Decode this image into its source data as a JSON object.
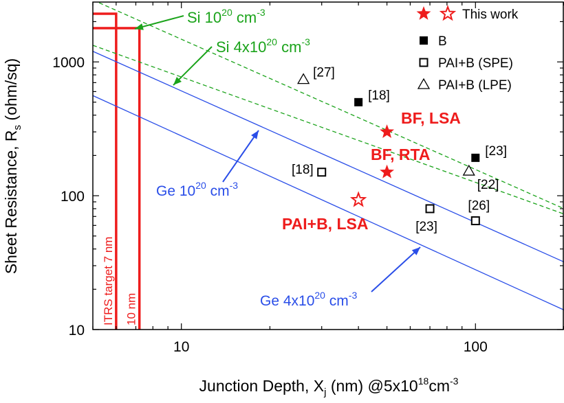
{
  "chart_data": {
    "type": "scatter",
    "xscale": "log",
    "yscale": "log",
    "xlim": [
      5,
      200
    ],
    "ylim": [
      10,
      2800
    ],
    "xticks": [
      {
        "v": 10,
        "label": "10"
      },
      {
        "v": 100,
        "label": "100"
      }
    ],
    "yticks": [
      {
        "v": 10,
        "label": "10"
      },
      {
        "v": 100,
        "label": "100"
      },
      {
        "v": 1000,
        "label": "1000"
      }
    ],
    "xlabel": {
      "main": "Junction Depth, X",
      "sub": "j",
      "rest": " (nm) @5x10",
      "sup": "18",
      "tail": "cm",
      "sup2": "-3"
    },
    "ylabel": {
      "main": "Sheet Resistance, R",
      "sub": "s",
      "tail": " (ohm/sq)"
    },
    "legend": [
      {
        "marker": "stars",
        "label": "This work"
      },
      {
        "marker": "square-filled",
        "label": "B"
      },
      {
        "marker": "square-open",
        "label": "PAI+B (SPE)"
      },
      {
        "marker": "triangle-open",
        "label": "PAI+B (LPE)"
      }
    ],
    "colors": {
      "red": "#ee1c1c",
      "green": "#1aa31a",
      "blue": "#2a4ee8",
      "black": "#000000"
    },
    "lines": [
      {
        "name": "Si 10^20 cm^-3",
        "color": "#1aa31a",
        "dash": true,
        "points": [
          [
            5,
            2900
          ],
          [
            200,
            80
          ]
        ]
      },
      {
        "name": "Si 4x10^20 cm^-3",
        "color": "#1aa31a",
        "dash": true,
        "points": [
          [
            5,
            1330
          ],
          [
            200,
            73
          ]
        ]
      },
      {
        "name": "Ge 10^20 cm^-3",
        "color": "#2a4ee8",
        "dash": false,
        "points": [
          [
            5,
            1200
          ],
          [
            200,
            32
          ]
        ]
      },
      {
        "name": "Ge 4x10^20 cm^-3",
        "color": "#2a4ee8",
        "dash": false,
        "points": [
          [
            5,
            560
          ],
          [
            200,
            14
          ]
        ]
      }
    ],
    "points": [
      {
        "series": "This work",
        "marker": "star-filled",
        "x": 50,
        "y": 300
      },
      {
        "series": "This work",
        "marker": "star-filled",
        "x": 50,
        "y": 150
      },
      {
        "series": "This work",
        "marker": "star-open",
        "x": 40,
        "y": 93
      },
      {
        "series": "B",
        "marker": "square-filled",
        "x": 40,
        "y": 500
      },
      {
        "series": "B",
        "marker": "square-filled",
        "x": 100,
        "y": 192
      },
      {
        "series": "PAI+B (SPE)",
        "marker": "square-open",
        "x": 30,
        "y": 150
      },
      {
        "series": "PAI+B (SPE)",
        "marker": "square-open",
        "x": 70,
        "y": 80
      },
      {
        "series": "PAI+B (SPE)",
        "marker": "square-open",
        "x": 100,
        "y": 65
      },
      {
        "series": "PAI+B (LPE)",
        "marker": "triangle-open",
        "x": 26,
        "y": 740
      },
      {
        "series": "PAI+B (LPE)",
        "marker": "triangle-open",
        "x": 95,
        "y": 153
      }
    ],
    "refs": [
      {
        "text": "[27]",
        "x": 26,
        "y": 740,
        "anchor": "right"
      },
      {
        "text": "[18]",
        "x": 40,
        "y": 500,
        "anchor": "right"
      },
      {
        "text": "[18]",
        "x": 30,
        "y": 150,
        "anchor": "left"
      },
      {
        "text": "[23]",
        "x": 100,
        "y": 192,
        "anchor": "right"
      },
      {
        "text": "[22]",
        "x": 95,
        "y": 153,
        "anchor": "below-right"
      },
      {
        "text": "[26]",
        "x": 100,
        "y": 65,
        "anchor": "above"
      },
      {
        "text": "[23]",
        "x": 70,
        "y": 80,
        "anchor": "below"
      }
    ],
    "annotations": {
      "bf_lsa": "BF, LSA",
      "bf_rta": "BF, RTA",
      "pai_lsa": "PAI+B, LSA",
      "si1": {
        "base": "Si 10",
        "sup": "20",
        "unit": " cm",
        "usup": "-3"
      },
      "si4": {
        "base": "Si 4x10",
        "sup": "20",
        "unit": " cm",
        "usup": "-3"
      },
      "ge1": {
        "base": "Ge 10",
        "sup": "20",
        "unit": " cm",
        "usup": "-3"
      },
      "ge4": {
        "base": "Ge 4x10",
        "sup": "20",
        "unit": " cm",
        "usup": "-3"
      },
      "itrs": "ITRS target 7 nm",
      "ten_nm": "10 nm"
    },
    "targets": [
      {
        "x": 6.0
      },
      {
        "x": 7.2
      }
    ]
  }
}
